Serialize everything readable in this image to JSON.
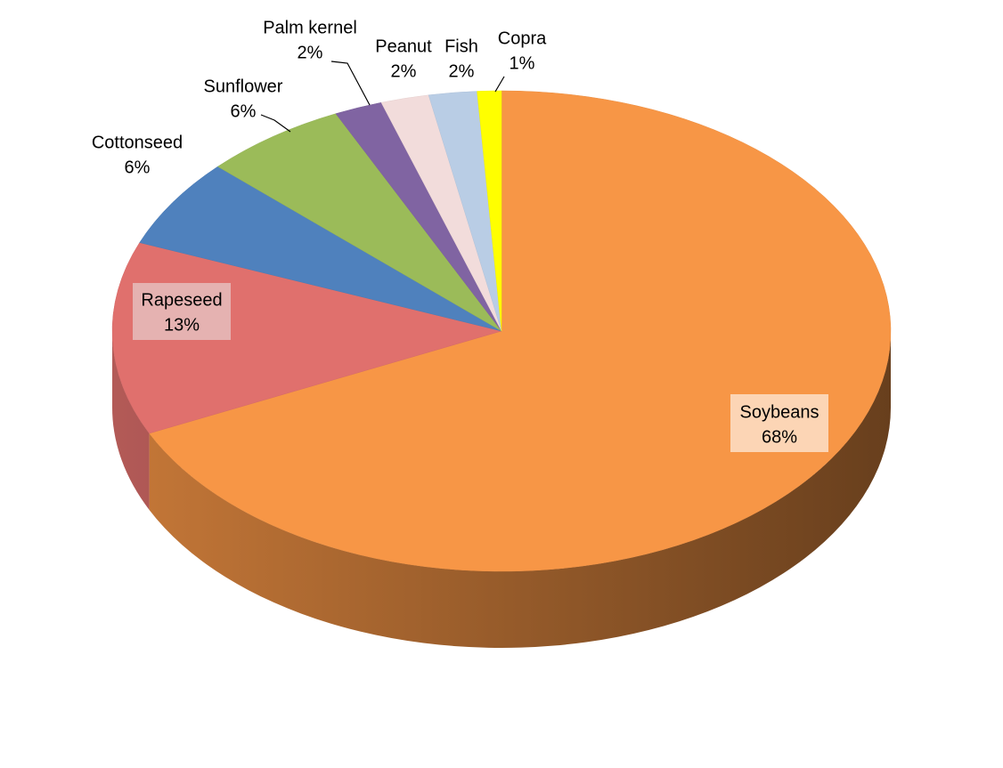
{
  "chart_data": {
    "type": "pie",
    "categories": [
      "Soybeans",
      "Rapeseed",
      "Cottonseed",
      "Sunflower",
      "Palm kernel",
      "Peanut",
      "Fish",
      "Copra"
    ],
    "values": [
      68,
      13,
      6,
      6,
      2,
      2,
      2,
      1
    ],
    "value_labels": [
      "68%",
      "13%",
      "6%",
      "6%",
      "2%",
      "2%",
      "2%",
      "1%"
    ],
    "colors": [
      "#f79646",
      "#e0706d",
      "#4f81bd",
      "#9bbb59",
      "#8064a2",
      "#f2dcdb",
      "#b9cde5",
      "#ffff00"
    ]
  }
}
